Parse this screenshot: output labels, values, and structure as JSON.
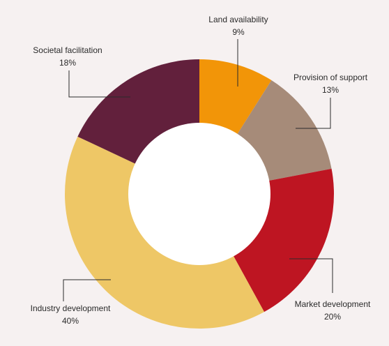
{
  "chart_data": {
    "type": "pie",
    "variant": "donut",
    "title": "",
    "categories": [
      "Land availability",
      "Provision of support",
      "Market development",
      "Industry development",
      "Societal facilitation"
    ],
    "values": [
      9,
      13,
      20,
      40,
      18
    ],
    "value_labels": [
      "9%",
      "13%",
      "20%",
      "40%",
      "18%"
    ],
    "unit": "%",
    "colors": [
      "#f29508",
      "#a68b79",
      "#be1522",
      "#eec766",
      "#62203c"
    ],
    "legend": "none",
    "start_angle_deg": 0,
    "direction": "clockwise"
  }
}
